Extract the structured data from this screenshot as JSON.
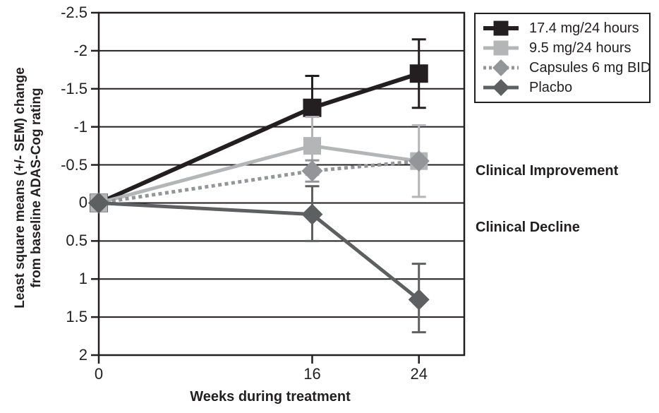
{
  "figure": {
    "y_axis_label_line1": "Least square means (+/- SEM) change",
    "y_axis_label_line2": "from baseline ADAS-Cog rating",
    "x_axis_label": "Weeks during treatment",
    "annotation_improvement": "Clinical Improvement",
    "annotation_decline": "Clinical Decline",
    "background_color": "#ffffff",
    "axis_color": "#231f20"
  },
  "chart_data": {
    "type": "line",
    "title": "",
    "xlabel": "Weeks during treatment",
    "ylabel": "Least square means (+/- SEM) change from baseline ADAS-Cog rating",
    "x": [
      0,
      16,
      24
    ],
    "x_tick_values": [
      0,
      16,
      24
    ],
    "x_tick_labels": [
      "0",
      "16",
      "24"
    ],
    "x_range": [
      0,
      27.4
    ],
    "y_tick_values": [
      -2.5,
      -2,
      -1.5,
      -1,
      -0.5,
      0,
      0.5,
      1,
      1.5,
      2
    ],
    "y_tick_labels": [
      "-2.5",
      "-2",
      "-1.5",
      "-1",
      "-0.5",
      "0",
      "0.5",
      "1",
      "1.5",
      "2"
    ],
    "y_range": [
      -2.5,
      2
    ],
    "y_axis_note": "negative (improvement) plotted upward",
    "grid": "horizontal",
    "legend_position": "outside-top-right",
    "annotations": [
      {
        "text": "Clinical Improvement",
        "region": "above zero line"
      },
      {
        "text": "Clinical Decline",
        "region": "below zero line"
      }
    ],
    "series": [
      {
        "name": "17.4 mg/24 hours",
        "color": "#231f20",
        "marker": "square",
        "marker_size": 26,
        "line_style": "solid",
        "line_width": 6,
        "values": [
          0,
          -1.25,
          -1.7
        ],
        "errors": [
          null,
          [
            -1.67,
            -0.83
          ],
          [
            -2.15,
            -1.25
          ]
        ]
      },
      {
        "name": "9.5 mg/24 hours",
        "color": "#b4b5b7",
        "marker": "square",
        "marker_size": 25,
        "line_style": "solid",
        "line_width": 5,
        "values": [
          0,
          -0.75,
          -0.55
        ],
        "errors": [
          null,
          [
            -1.13,
            -0.37
          ],
          [
            -1.02,
            -0.08
          ]
        ]
      },
      {
        "name": "Capsules 6 mg BID",
        "color": "#939598",
        "marker": "diamond",
        "marker_size": 30,
        "line_style": "dotted",
        "line_width": 5,
        "values": [
          0,
          -0.42,
          -0.55
        ],
        "errors": [
          null,
          [
            -0.56,
            -0.28
          ],
          null
        ]
      },
      {
        "name": "Placbo",
        "color": "#5e5f61",
        "marker": "diamond",
        "marker_size": 30,
        "line_style": "solid",
        "line_width": 5,
        "values": [
          0,
          0.15,
          1.27
        ],
        "errors": [
          null,
          [
            -0.22,
            0.5
          ],
          [
            0.8,
            1.7
          ]
        ]
      }
    ]
  }
}
